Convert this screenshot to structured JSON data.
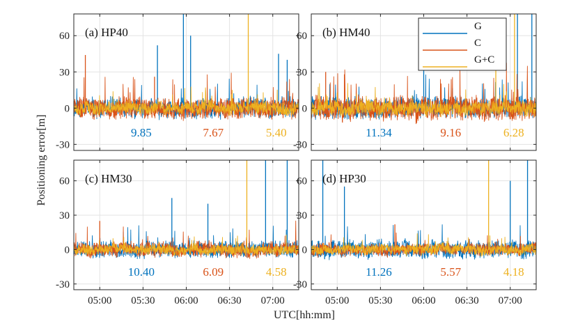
{
  "chart_data": {
    "type": "line",
    "xlabel": "UTC[hh:mm]",
    "ylabel": "Positioning error[m]",
    "x_ticks": [
      "05:00",
      "05:30",
      "06:00",
      "06:30",
      "07:00"
    ],
    "y_ticks": [
      "-30",
      "0",
      "30",
      "60"
    ],
    "xlim": [
      "04:42",
      "07:18"
    ],
    "ylim": [
      -35,
      78
    ],
    "grid": true,
    "legend": {
      "placement": "top-right of panel (b)",
      "entries": [
        "G",
        "C",
        "G+C"
      ]
    },
    "colors": {
      "G": "#0072BD",
      "C": "#D95319",
      "G+C": "#EDB120"
    },
    "panels": [
      {
        "title": "(a) HP40",
        "rms": {
          "G": "9.85",
          "C": "7.67",
          "G+C": "5.40"
        },
        "series": [
          {
            "name": "G",
            "amplitude": 9,
            "spikes": [
              {
                "x": "05:40",
                "y": 52
              },
              {
                "x": "05:58",
                "y": 78
              },
              {
                "x": "06:03",
                "y": 60
              },
              {
                "x": "07:04",
                "y": 45
              },
              {
                "x": "07:10",
                "y": 40
              }
            ]
          },
          {
            "name": "C",
            "amplitude": 10,
            "spikes": [
              {
                "x": "04:50",
                "y": 44
              },
              {
                "x": "05:38",
                "y": 26
              }
            ]
          },
          {
            "name": "G+C",
            "amplitude": 6,
            "spikes": [
              {
                "x": "06:43",
                "y": 78
              }
            ]
          }
        ]
      },
      {
        "title": "(b) HM40",
        "rms": {
          "G": "11.34",
          "C": "9.16",
          "G+C": "6.28"
        },
        "series": [
          {
            "name": "G",
            "amplitude": 10,
            "spikes": [
              {
                "x": "06:00",
                "y": 60
              },
              {
                "x": "07:05",
                "y": 78
              },
              {
                "x": "07:15",
                "y": 78
              }
            ]
          },
          {
            "name": "C",
            "amplitude": 11,
            "spikes": [
              {
                "x": "04:52",
                "y": 30
              },
              {
                "x": "05:05",
                "y": 28
              }
            ]
          },
          {
            "name": "G+C",
            "amplitude": 7,
            "spikes": [
              {
                "x": "06:50",
                "y": 35
              },
              {
                "x": "07:03",
                "y": 78
              }
            ]
          }
        ]
      },
      {
        "title": "(c) HM30",
        "rms": {
          "G": "10.40",
          "C": "6.09",
          "G+C": "4.58"
        },
        "series": [
          {
            "name": "G",
            "amplitude": 8,
            "spikes": [
              {
                "x": "05:50",
                "y": 45
              },
              {
                "x": "06:15",
                "y": 40
              },
              {
                "x": "06:55",
                "y": 78
              },
              {
                "x": "07:10",
                "y": 78
              }
            ]
          },
          {
            "name": "C",
            "amplitude": 7,
            "spikes": [
              {
                "x": "05:00",
                "y": 25
              }
            ]
          },
          {
            "name": "G+C",
            "amplitude": 5,
            "spikes": [
              {
                "x": "06:42",
                "y": 78
              }
            ]
          }
        ]
      },
      {
        "title": "(d) HP30",
        "rms": {
          "G": "11.26",
          "C": "5.57",
          "G+C": "4.18"
        },
        "series": [
          {
            "name": "G",
            "amplitude": 9,
            "spikes": [
              {
                "x": "04:50",
                "y": 78
              },
              {
                "x": "05:05",
                "y": 55
              },
              {
                "x": "07:00",
                "y": 60
              },
              {
                "x": "07:12",
                "y": 78
              }
            ]
          },
          {
            "name": "C",
            "amplitude": 6,
            "spikes": [
              {
                "x": "05:40",
                "y": 22
              }
            ]
          },
          {
            "name": "G+C",
            "amplitude": 5,
            "spikes": [
              {
                "x": "06:45",
                "y": 78
              }
            ]
          }
        ]
      }
    ]
  }
}
